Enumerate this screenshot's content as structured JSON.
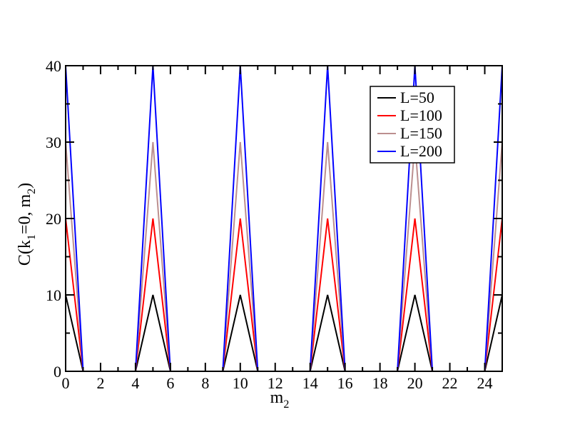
{
  "chart_data": {
    "type": "line",
    "title": "",
    "xlabel": {
      "main": "m",
      "sub": "2"
    },
    "ylabel": {
      "p1": "C(k",
      "s1": "1",
      "p2": "=0, m",
      "s2": "2",
      "p3": ")"
    },
    "xlim": [
      0,
      25
    ],
    "ylim": [
      0,
      40
    ],
    "xticks": [
      0,
      2,
      4,
      6,
      8,
      10,
      12,
      14,
      16,
      18,
      20,
      22,
      24
    ],
    "yticks": [
      0,
      10,
      20,
      30,
      40
    ],
    "grid": false,
    "legend_position": "top-right",
    "series": [
      {
        "name": "L=50",
        "color": "#000000",
        "x": [
          0,
          1,
          4,
          5,
          6,
          9,
          10,
          11,
          14,
          15,
          16,
          19,
          20,
          21,
          24,
          25
        ],
        "y": [
          10,
          0,
          0,
          10,
          0,
          0,
          10,
          0,
          0,
          10,
          0,
          0,
          10,
          0,
          0,
          10
        ]
      },
      {
        "name": "L=100",
        "color": "#ff0000",
        "x": [
          0,
          1,
          4,
          5,
          6,
          9,
          10,
          11,
          14,
          15,
          16,
          19,
          20,
          21,
          24,
          25
        ],
        "y": [
          20,
          0,
          0,
          20,
          0,
          0,
          20,
          0,
          0,
          20,
          0,
          0,
          20,
          0,
          0,
          20
        ]
      },
      {
        "name": "L=150",
        "color": "#bc8f8f",
        "x": [
          0,
          1,
          4,
          5,
          6,
          9,
          10,
          11,
          14,
          15,
          16,
          19,
          20,
          21,
          24,
          25
        ],
        "y": [
          30,
          0,
          0,
          30,
          0,
          0,
          30,
          0,
          0,
          30,
          0,
          0,
          30,
          0,
          0,
          30
        ]
      },
      {
        "name": "L=200",
        "color": "#0000ff",
        "x": [
          0,
          1,
          4,
          5,
          6,
          9,
          10,
          11,
          14,
          15,
          16,
          19,
          20,
          21,
          24,
          25
        ],
        "y": [
          40,
          0,
          0,
          40,
          0,
          0,
          40,
          0,
          0,
          40,
          0,
          0,
          40,
          0,
          0,
          40
        ]
      }
    ]
  }
}
